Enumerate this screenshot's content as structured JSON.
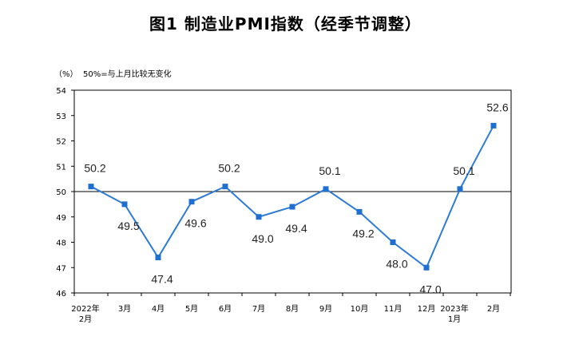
{
  "chart_data": {
    "type": "line",
    "title": "图1  制造业PMI指数（经季节调整）",
    "unit_label": "（%）",
    "note": "50%=与上月比较无变化",
    "categories": [
      [
        "2022年",
        "2月"
      ],
      [
        "3月"
      ],
      [
        "4月"
      ],
      [
        "5月"
      ],
      [
        "6月"
      ],
      [
        "7月"
      ],
      [
        "8月"
      ],
      [
        "9月"
      ],
      [
        "10月"
      ],
      [
        "11月"
      ],
      [
        "12月"
      ],
      [
        "2023年",
        "1月"
      ],
      [
        "2月"
      ]
    ],
    "series": [
      {
        "values": [
          50.2,
          49.5,
          47.4,
          49.6,
          50.2,
          49.0,
          49.4,
          50.1,
          49.2,
          48.0,
          47.0,
          50.1,
          52.6
        ],
        "labels": [
          "50.2",
          "49.5",
          "47.4",
          "49.6",
          "50.2",
          "49.0",
          "49.4",
          "50.1",
          "49.2",
          "48.0",
          "47.0",
          "50.1",
          "52.6"
        ],
        "label_positions": [
          "above",
          "below",
          "below",
          "below",
          "above",
          "below",
          "below",
          "above",
          "below",
          "below",
          "below",
          "above",
          "above"
        ]
      }
    ],
    "ylim": [
      46,
      54
    ],
    "yticks": [
      "46",
      "47",
      "48",
      "49",
      "50",
      "51",
      "52",
      "53",
      "54"
    ],
    "reference_line": 50,
    "line_color": "#2e7bd6",
    "marker_color": "#1f6fd0",
    "grid": false
  }
}
